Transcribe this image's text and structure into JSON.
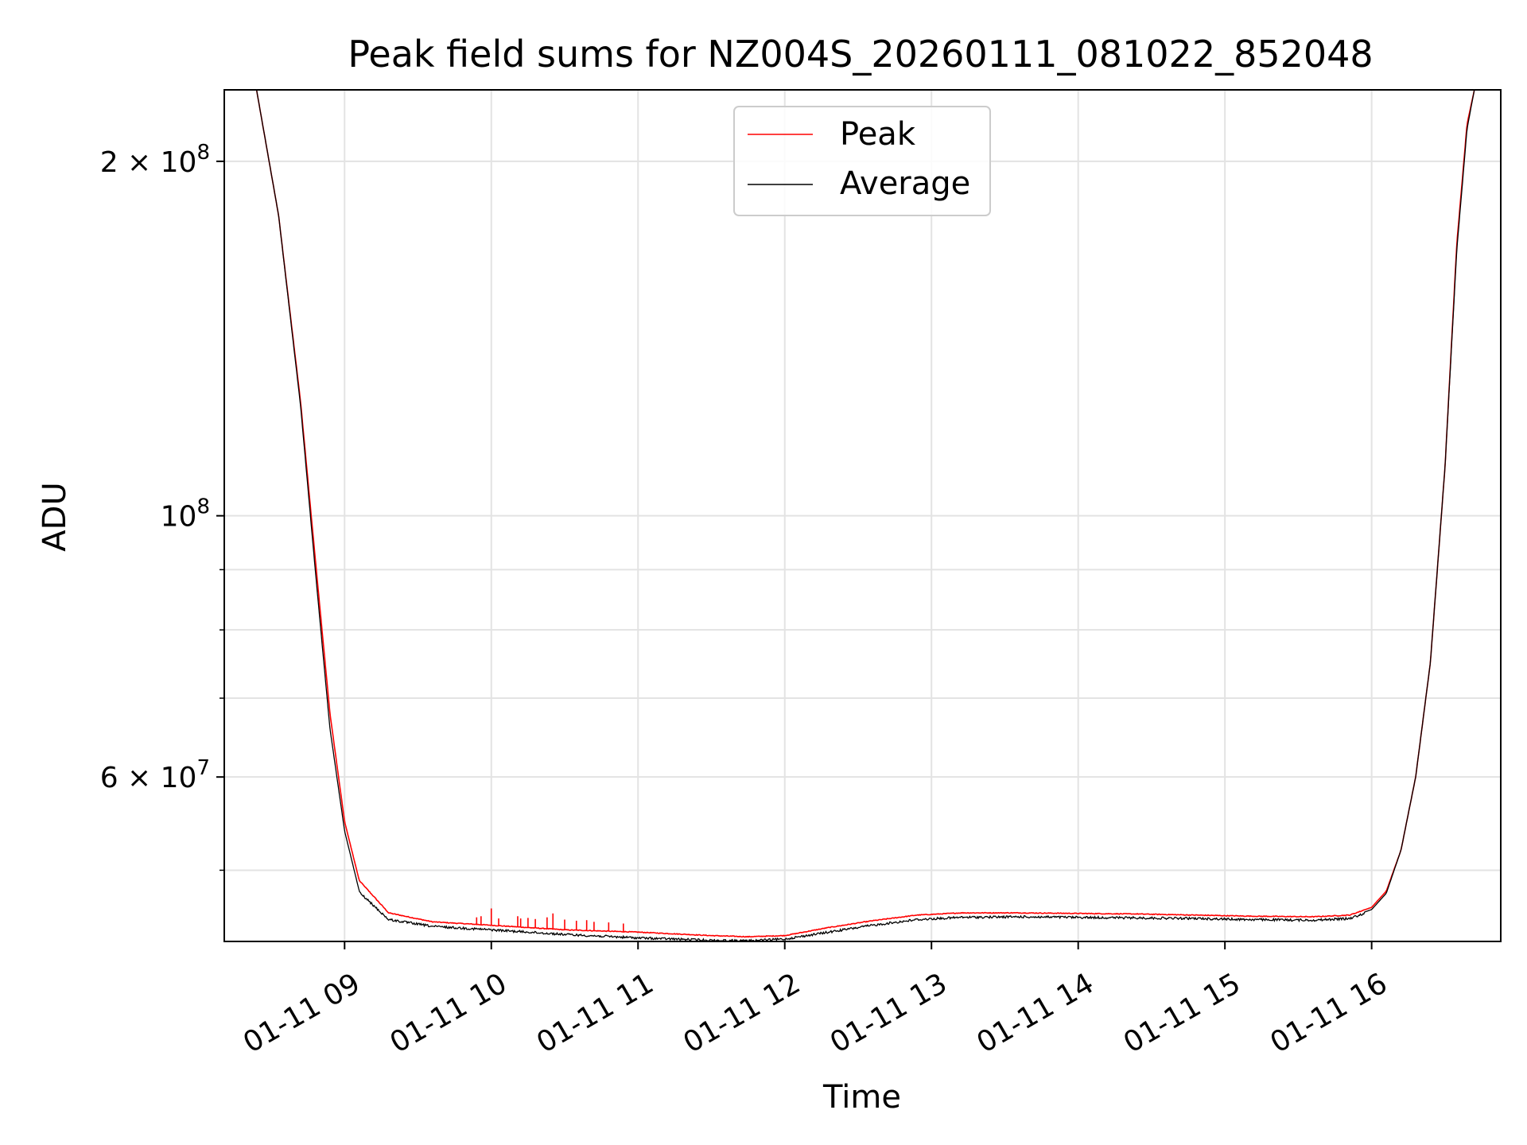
{
  "chart_data": {
    "type": "line",
    "title": "Peak field sums for NZ004S_20260111_081022_852048",
    "xlabel": "Time",
    "ylabel": "ADU",
    "yscale": "log",
    "grid": true,
    "legend_position": "top-center",
    "x_unit": "hours since 01-11 00:00",
    "xlim": [
      8.18,
      16.88
    ],
    "ylim": [
      43500000,
      230000000
    ],
    "x_ticks": [
      {
        "value": 9,
        "label": "01-11 09"
      },
      {
        "value": 10,
        "label": "01-11 10"
      },
      {
        "value": 11,
        "label": "01-11 11"
      },
      {
        "value": 12,
        "label": "01-11 12"
      },
      {
        "value": 13,
        "label": "01-11 13"
      },
      {
        "value": 14,
        "label": "01-11 14"
      },
      {
        "value": 15,
        "label": "01-11 15"
      },
      {
        "value": 16,
        "label": "01-11 16"
      }
    ],
    "y_major_ticks": [
      {
        "value": 200000000,
        "base": "2 × 10",
        "exp": "8"
      },
      {
        "value": 100000000,
        "base": "10",
        "exp": "8"
      },
      {
        "value": 60000000,
        "base": "6 × 10",
        "exp": "7"
      }
    ],
    "y_minor_ticks": [
      50000000,
      70000000,
      80000000,
      90000000
    ],
    "series": [
      {
        "name": "Peak",
        "color": "#ff0000",
        "x": [
          8.18,
          8.4,
          8.55,
          8.7,
          8.8,
          8.9,
          9.0,
          9.1,
          9.3,
          9.6,
          10.0,
          10.5,
          11.0,
          11.5,
          11.75,
          12.0,
          12.3,
          12.6,
          12.9,
          13.2,
          13.6,
          14.0,
          14.4,
          14.8,
          15.2,
          15.6,
          15.85,
          16.0,
          16.1,
          16.2,
          16.3,
          16.4,
          16.5,
          16.58,
          16.65,
          16.7,
          16.88
        ],
        "y": [
          230000000,
          230000000,
          180000000,
          125000000,
          92000000,
          68000000,
          55000000,
          49000000,
          46000000,
          45200000,
          44900000,
          44500000,
          44300000,
          44000000,
          43900000,
          44000000,
          44700000,
          45300000,
          45800000,
          46000000,
          46000000,
          45950000,
          45900000,
          45800000,
          45700000,
          45650000,
          45800000,
          46500000,
          48000000,
          52000000,
          60000000,
          75000000,
          110000000,
          170000000,
          215000000,
          230000000,
          230000000
        ],
        "spikes": [
          {
            "x": 9.9,
            "y": 45600000
          },
          {
            "x": 9.93,
            "y": 45700000
          },
          {
            "x": 10.0,
            "y": 46400000
          },
          {
            "x": 10.05,
            "y": 45500000
          },
          {
            "x": 10.18,
            "y": 45700000
          },
          {
            "x": 10.2,
            "y": 45500000
          },
          {
            "x": 10.25,
            "y": 45550000
          },
          {
            "x": 10.3,
            "y": 45450000
          },
          {
            "x": 10.38,
            "y": 45600000
          },
          {
            "x": 10.42,
            "y": 45950000
          },
          {
            "x": 10.5,
            "y": 45400000
          },
          {
            "x": 10.58,
            "y": 45300000
          },
          {
            "x": 10.65,
            "y": 45350000
          },
          {
            "x": 10.7,
            "y": 45200000
          },
          {
            "x": 10.8,
            "y": 45150000
          },
          {
            "x": 10.9,
            "y": 45050000
          }
        ]
      },
      {
        "name": "Average",
        "color": "#000000",
        "x": [
          8.18,
          8.4,
          8.55,
          8.7,
          8.8,
          8.9,
          9.0,
          9.1,
          9.3,
          9.6,
          10.0,
          10.5,
          11.0,
          11.5,
          11.75,
          12.0,
          12.3,
          12.6,
          12.9,
          13.2,
          13.6,
          14.0,
          14.4,
          14.8,
          15.2,
          15.6,
          15.85,
          16.0,
          16.1,
          16.2,
          16.3,
          16.4,
          16.5,
          16.58,
          16.65,
          16.7,
          16.88
        ],
        "y": [
          230000000,
          230000000,
          180000000,
          124000000,
          90000000,
          66000000,
          54000000,
          48000000,
          45500000,
          44900000,
          44600000,
          44200000,
          43900000,
          43700000,
          43650000,
          43800000,
          44400000,
          45000000,
          45500000,
          45700000,
          45750000,
          45700000,
          45650000,
          45600000,
          45500000,
          45450000,
          45600000,
          46300000,
          47800000,
          52000000,
          60000000,
          75000000,
          110000000,
          168000000,
          213000000,
          230000000,
          230000000
        ],
        "noise_amplitude": 0.0045
      }
    ]
  }
}
